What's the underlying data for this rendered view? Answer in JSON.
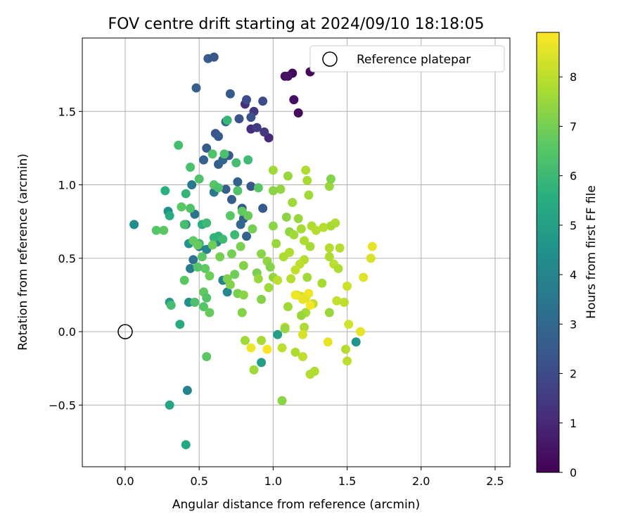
{
  "chart_data": {
    "type": "scatter",
    "title": "FOV centre drift starting at 2024/09/10 18:18:05",
    "xlabel": "Angular distance from reference (arcmin)",
    "ylabel": "Rotation from reference (arcmin)",
    "xlim": [
      -0.29,
      2.6
    ],
    "ylim": [
      -0.92,
      2.0
    ],
    "xticks": [
      0.0,
      0.5,
      1.0,
      1.5,
      2.0,
      2.5
    ],
    "xtick_labels": [
      "0.0",
      "0.5",
      "1.0",
      "1.5",
      "2.0",
      "2.5"
    ],
    "yticks": [
      -0.5,
      0.0,
      0.5,
      1.0,
      1.5
    ],
    "ytick_labels": [
      "−0.5",
      "0.0",
      "0.5",
      "1.0",
      "1.5"
    ],
    "grid": true,
    "legend": {
      "label": "Reference platepar",
      "placement": "top-right"
    },
    "reference_point": {
      "x": 0.0,
      "y": 0.0
    },
    "colorbar": {
      "label": "Hours from first FF file",
      "colormap": "viridis",
      "range": [
        0,
        8.9
      ],
      "ticks": [
        0,
        1,
        2,
        3,
        4,
        5,
        6,
        7,
        8
      ],
      "tick_labels": [
        "0",
        "1",
        "2",
        "3",
        "4",
        "5",
        "6",
        "7",
        "8"
      ]
    },
    "points": [
      [
        1.13,
        1.76,
        0.1
      ],
      [
        1.08,
        1.74,
        0.3
      ],
      [
        1.1,
        1.74,
        0.4
      ],
      [
        1.25,
        1.77,
        0.2
      ],
      [
        1.14,
        1.58,
        0.3
      ],
      [
        1.17,
        1.49,
        0.2
      ],
      [
        0.97,
        1.32,
        1.0
      ],
      [
        0.81,
        1.55,
        1.2
      ],
      [
        0.85,
        1.38,
        1.1
      ],
      [
        0.87,
        1.5,
        1.4
      ],
      [
        0.89,
        1.39,
        1.6
      ],
      [
        0.94,
        1.36,
        1.5
      ],
      [
        0.93,
        1.57,
        2.0
      ],
      [
        0.82,
        1.58,
        2.1
      ],
      [
        0.85,
        1.46,
        2.2
      ],
      [
        0.77,
        1.45,
        2.3
      ],
      [
        0.71,
        1.62,
        2.5
      ],
      [
        0.56,
        1.86,
        2.6
      ],
      [
        0.6,
        1.87,
        2.4
      ],
      [
        0.48,
        1.66,
        2.7
      ],
      [
        0.55,
        1.25,
        2.5
      ],
      [
        0.61,
        1.35,
        2.4
      ],
      [
        0.63,
        1.33,
        2.5
      ],
      [
        0.68,
        1.43,
        2.6
      ],
      [
        0.7,
        1.2,
        2.4
      ],
      [
        0.53,
        1.17,
        2.8
      ],
      [
        0.63,
        1.14,
        2.7
      ],
      [
        0.66,
        1.17,
        2.9
      ],
      [
        0.76,
        1.02,
        2.8
      ],
      [
        0.85,
        0.99,
        2.4
      ],
      [
        0.79,
        0.84,
        2.5
      ],
      [
        0.72,
        0.9,
        2.6
      ],
      [
        0.8,
        0.77,
        2.7
      ],
      [
        0.68,
        0.97,
        2.6
      ],
      [
        0.93,
        0.84,
        2.5
      ],
      [
        0.82,
        0.65,
        2.8
      ],
      [
        0.78,
        0.73,
        3.0
      ],
      [
        0.6,
        0.95,
        3.5
      ],
      [
        0.47,
        0.8,
        3.4
      ],
      [
        0.45,
        1.0,
        3.6
      ],
      [
        0.41,
        0.73,
        3.8
      ],
      [
        0.5,
        0.58,
        3.5
      ],
      [
        0.46,
        0.49,
        3.3
      ],
      [
        0.44,
        0.43,
        3.7
      ],
      [
        0.62,
        0.61,
        3.9
      ],
      [
        0.55,
        0.56,
        4.0
      ],
      [
        0.66,
        0.35,
        3.9
      ],
      [
        0.69,
        0.27,
        4.1
      ],
      [
        0.42,
        -0.4,
        4.0
      ],
      [
        0.06,
        0.73,
        4.3
      ],
      [
        0.29,
        0.82,
        4.5
      ],
      [
        0.43,
        0.6,
        4.6
      ],
      [
        0.43,
        0.2,
        4.5
      ],
      [
        0.3,
        0.2,
        4.8
      ],
      [
        0.92,
        -0.21,
        4.9
      ],
      [
        1.56,
        -0.07,
        4.6
      ],
      [
        1.03,
        -0.02,
        5.0
      ],
      [
        0.3,
        -0.5,
        5.2
      ],
      [
        0.41,
        -0.77,
        5.3
      ],
      [
        0.37,
        0.05,
        5.4
      ],
      [
        0.52,
        0.73,
        5.6
      ],
      [
        0.63,
        0.65,
        5.7
      ],
      [
        0.27,
        0.96,
        5.6
      ],
      [
        0.3,
        0.79,
        5.5
      ],
      [
        0.41,
        0.94,
        5.8
      ],
      [
        0.5,
        0.6,
        5.9
      ],
      [
        0.55,
        0.74,
        6.0
      ],
      [
        0.6,
        0.64,
        5.8
      ],
      [
        0.66,
        0.63,
        6.1
      ],
      [
        0.74,
        0.66,
        6.0
      ],
      [
        0.69,
        1.44,
        5.9
      ],
      [
        0.83,
        1.17,
        6.1
      ],
      [
        0.75,
        1.15,
        6.2
      ],
      [
        0.67,
        1.21,
        6.3
      ],
      [
        0.59,
        1.21,
        6.4
      ],
      [
        0.36,
        1.27,
        6.2
      ],
      [
        0.44,
        1.12,
        6.3
      ],
      [
        0.5,
        1.04,
        6.4
      ],
      [
        0.6,
        1.0,
        6.5
      ],
      [
        0.63,
        0.98,
        6.3
      ],
      [
        0.71,
        0.79,
        6.6
      ],
      [
        0.76,
        0.96,
        6.4
      ],
      [
        0.79,
        0.82,
        6.7
      ],
      [
        0.83,
        0.79,
        6.8
      ],
      [
        0.9,
        0.98,
        6.5
      ],
      [
        0.38,
        0.85,
        6.6
      ],
      [
        0.44,
        0.84,
        6.4
      ],
      [
        0.4,
        0.73,
        6.2
      ],
      [
        0.21,
        0.69,
        6.5
      ],
      [
        0.26,
        0.69,
        6.6
      ],
      [
        0.46,
        0.62,
        6.7
      ],
      [
        0.49,
        0.59,
        6.8
      ],
      [
        0.52,
        0.51,
        6.6
      ],
      [
        0.54,
        0.43,
        6.7
      ],
      [
        0.49,
        0.44,
        6.5
      ],
      [
        0.4,
        0.35,
        6.6
      ],
      [
        0.53,
        0.27,
        6.7
      ],
      [
        0.55,
        0.23,
        6.4
      ],
      [
        0.47,
        0.2,
        6.3
      ],
      [
        0.53,
        0.17,
        6.5
      ],
      [
        0.57,
        0.13,
        6.8
      ],
      [
        0.55,
        -0.17,
        6.6
      ],
      [
        0.31,
        0.18,
        6.2
      ],
      [
        0.59,
        0.59,
        6.9
      ],
      [
        0.57,
        0.38,
        6.9
      ],
      [
        0.64,
        0.51,
        7.0
      ],
      [
        0.69,
        0.36,
        7.1
      ],
      [
        0.71,
        0.32,
        7.2
      ],
      [
        0.72,
        0.53,
        7.0
      ],
      [
        0.78,
        0.58,
        7.1
      ],
      [
        0.8,
        0.45,
        7.2
      ],
      [
        0.74,
        0.39,
        6.9
      ],
      [
        0.76,
        0.26,
        7.0
      ],
      [
        0.8,
        0.25,
        7.3
      ],
      [
        0.79,
        0.13,
        7.2
      ],
      [
        0.86,
        0.7,
        7.0
      ],
      [
        0.89,
        0.4,
        7.1
      ],
      [
        0.92,
        0.53,
        7.3
      ],
      [
        0.96,
        0.48,
        7.4
      ],
      [
        0.98,
        0.44,
        7.2
      ],
      [
        0.9,
        0.36,
        7.5
      ],
      [
        0.92,
        0.22,
        7.2
      ],
      [
        0.97,
        0.3,
        7.6
      ],
      [
        1.0,
        0.37,
        7.4
      ],
      [
        1.0,
        0.72,
        7.3
      ],
      [
        1.02,
        0.6,
        7.5
      ],
      [
        1.05,
        0.97,
        7.4
      ],
      [
        1.0,
        0.96,
        7.3
      ],
      [
        1.0,
        1.1,
        7.6
      ],
      [
        1.1,
        1.06,
        7.5
      ],
      [
        1.13,
        0.88,
        7.6
      ],
      [
        1.09,
        0.78,
        7.3
      ],
      [
        1.11,
        0.68,
        7.4
      ],
      [
        1.14,
        0.66,
        7.6
      ],
      [
        1.17,
        0.77,
        7.5
      ],
      [
        1.19,
        0.7,
        7.7
      ],
      [
        1.21,
        0.62,
        7.8
      ],
      [
        1.24,
        0.93,
        7.6
      ],
      [
        1.23,
        1.03,
        7.7
      ],
      [
        1.26,
        0.72,
        7.8
      ],
      [
        1.29,
        0.69,
        7.9
      ],
      [
        1.25,
        0.58,
        7.7
      ],
      [
        1.21,
        0.49,
        7.9
      ],
      [
        1.18,
        0.46,
        8.0
      ],
      [
        1.15,
        0.42,
        8.1
      ],
      [
        1.11,
        0.54,
        7.8
      ],
      [
        1.12,
        0.36,
        7.9
      ],
      [
        1.1,
        0.17,
        7.6
      ],
      [
        1.16,
        0.25,
        8.2
      ],
      [
        1.19,
        0.24,
        8.3
      ],
      [
        1.22,
        0.13,
        7.7
      ],
      [
        1.19,
        0.11,
        7.5
      ],
      [
        1.23,
        0.37,
        7.6
      ],
      [
        1.27,
        0.19,
        8.0
      ],
      [
        1.33,
        0.33,
        7.7
      ],
      [
        1.38,
        0.13,
        7.5
      ],
      [
        1.38,
        0.51,
        7.8
      ],
      [
        1.38,
        0.57,
        7.9
      ],
      [
        1.41,
        0.46,
        8.0
      ],
      [
        1.44,
        0.43,
        7.8
      ],
      [
        1.45,
        0.57,
        7.9
      ],
      [
        1.42,
        0.74,
        7.8
      ],
      [
        1.39,
        0.72,
        7.7
      ],
      [
        1.34,
        0.71,
        7.9
      ],
      [
        1.38,
        0.99,
        7.5
      ],
      [
        1.39,
        1.04,
        7.2
      ],
      [
        1.22,
        1.1,
        7.8
      ],
      [
        1.21,
        0.03,
        7.8
      ],
      [
        1.08,
        0.03,
        8.1
      ],
      [
        1.06,
        -0.11,
        8.0
      ],
      [
        1.15,
        -0.14,
        7.8
      ],
      [
        1.2,
        -0.17,
        8.0
      ],
      [
        1.25,
        -0.29,
        7.9
      ],
      [
        1.28,
        -0.27,
        7.8
      ],
      [
        1.06,
        -0.47,
        7.3
      ],
      [
        0.87,
        -0.26,
        7.6
      ],
      [
        0.92,
        -0.06,
        7.7
      ],
      [
        0.81,
        -0.06,
        7.6
      ],
      [
        1.2,
        -0.02,
        8.4
      ],
      [
        1.22,
        0.23,
        8.5
      ],
      [
        1.24,
        0.26,
        8.7
      ],
      [
        1.2,
        0.22,
        8.6
      ],
      [
        1.25,
        0.18,
        8.8
      ],
      [
        1.15,
        0.25,
        8.7
      ],
      [
        1.37,
        -0.07,
        8.6
      ],
      [
        1.5,
        -0.2,
        8.0
      ],
      [
        1.49,
        -0.12,
        7.9
      ],
      [
        1.5,
        0.31,
        8.2
      ],
      [
        1.51,
        0.05,
        8.3
      ],
      [
        1.43,
        0.21,
        8.1
      ],
      [
        1.48,
        0.2,
        8.0
      ],
      [
        1.59,
        0.0,
        8.6
      ],
      [
        1.61,
        0.37,
        8.5
      ],
      [
        1.66,
        0.5,
        8.4
      ],
      [
        1.67,
        0.58,
        8.6
      ],
      [
        0.96,
        -0.12,
        8.8
      ],
      [
        0.85,
        -0.11,
        8.7
      ],
      [
        1.08,
        0.02,
        7.5
      ],
      [
        1.03,
        0.35,
        8.0
      ],
      [
        1.07,
        0.51,
        7.8
      ]
    ]
  }
}
